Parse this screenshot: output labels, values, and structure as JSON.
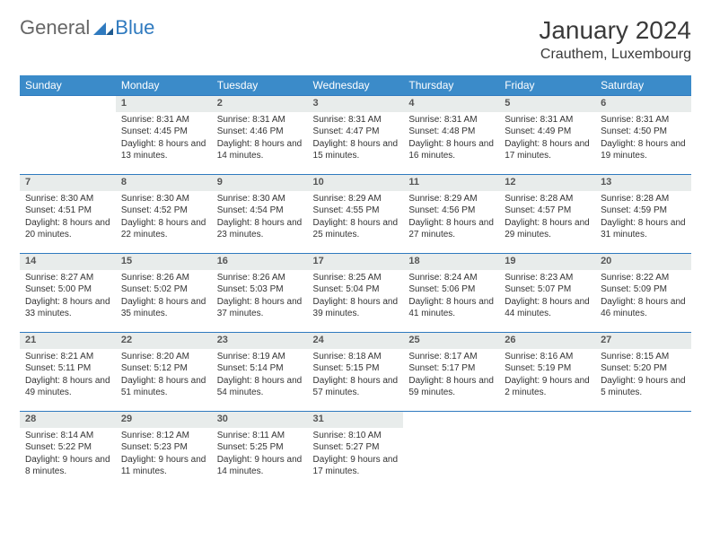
{
  "logo": {
    "general": "General",
    "blue": "Blue"
  },
  "title": "January 2024",
  "location": "Crauthem, Luxembourg",
  "colors": {
    "header_bg": "#3b8bc9",
    "header_text": "#ffffff",
    "daynum_bg": "#e8eceb",
    "border": "#2f7abf",
    "text": "#333333"
  },
  "weekdays": [
    "Sunday",
    "Monday",
    "Tuesday",
    "Wednesday",
    "Thursday",
    "Friday",
    "Saturday"
  ],
  "weeks": [
    [
      null,
      {
        "n": "1",
        "sr": "Sunrise: 8:31 AM",
        "ss": "Sunset: 4:45 PM",
        "dl": "Daylight: 8 hours and 13 minutes."
      },
      {
        "n": "2",
        "sr": "Sunrise: 8:31 AM",
        "ss": "Sunset: 4:46 PM",
        "dl": "Daylight: 8 hours and 14 minutes."
      },
      {
        "n": "3",
        "sr": "Sunrise: 8:31 AM",
        "ss": "Sunset: 4:47 PM",
        "dl": "Daylight: 8 hours and 15 minutes."
      },
      {
        "n": "4",
        "sr": "Sunrise: 8:31 AM",
        "ss": "Sunset: 4:48 PM",
        "dl": "Daylight: 8 hours and 16 minutes."
      },
      {
        "n": "5",
        "sr": "Sunrise: 8:31 AM",
        "ss": "Sunset: 4:49 PM",
        "dl": "Daylight: 8 hours and 17 minutes."
      },
      {
        "n": "6",
        "sr": "Sunrise: 8:31 AM",
        "ss": "Sunset: 4:50 PM",
        "dl": "Daylight: 8 hours and 19 minutes."
      }
    ],
    [
      {
        "n": "7",
        "sr": "Sunrise: 8:30 AM",
        "ss": "Sunset: 4:51 PM",
        "dl": "Daylight: 8 hours and 20 minutes."
      },
      {
        "n": "8",
        "sr": "Sunrise: 8:30 AM",
        "ss": "Sunset: 4:52 PM",
        "dl": "Daylight: 8 hours and 22 minutes."
      },
      {
        "n": "9",
        "sr": "Sunrise: 8:30 AM",
        "ss": "Sunset: 4:54 PM",
        "dl": "Daylight: 8 hours and 23 minutes."
      },
      {
        "n": "10",
        "sr": "Sunrise: 8:29 AM",
        "ss": "Sunset: 4:55 PM",
        "dl": "Daylight: 8 hours and 25 minutes."
      },
      {
        "n": "11",
        "sr": "Sunrise: 8:29 AM",
        "ss": "Sunset: 4:56 PM",
        "dl": "Daylight: 8 hours and 27 minutes."
      },
      {
        "n": "12",
        "sr": "Sunrise: 8:28 AM",
        "ss": "Sunset: 4:57 PM",
        "dl": "Daylight: 8 hours and 29 minutes."
      },
      {
        "n": "13",
        "sr": "Sunrise: 8:28 AM",
        "ss": "Sunset: 4:59 PM",
        "dl": "Daylight: 8 hours and 31 minutes."
      }
    ],
    [
      {
        "n": "14",
        "sr": "Sunrise: 8:27 AM",
        "ss": "Sunset: 5:00 PM",
        "dl": "Daylight: 8 hours and 33 minutes."
      },
      {
        "n": "15",
        "sr": "Sunrise: 8:26 AM",
        "ss": "Sunset: 5:02 PM",
        "dl": "Daylight: 8 hours and 35 minutes."
      },
      {
        "n": "16",
        "sr": "Sunrise: 8:26 AM",
        "ss": "Sunset: 5:03 PM",
        "dl": "Daylight: 8 hours and 37 minutes."
      },
      {
        "n": "17",
        "sr": "Sunrise: 8:25 AM",
        "ss": "Sunset: 5:04 PM",
        "dl": "Daylight: 8 hours and 39 minutes."
      },
      {
        "n": "18",
        "sr": "Sunrise: 8:24 AM",
        "ss": "Sunset: 5:06 PM",
        "dl": "Daylight: 8 hours and 41 minutes."
      },
      {
        "n": "19",
        "sr": "Sunrise: 8:23 AM",
        "ss": "Sunset: 5:07 PM",
        "dl": "Daylight: 8 hours and 44 minutes."
      },
      {
        "n": "20",
        "sr": "Sunrise: 8:22 AM",
        "ss": "Sunset: 5:09 PM",
        "dl": "Daylight: 8 hours and 46 minutes."
      }
    ],
    [
      {
        "n": "21",
        "sr": "Sunrise: 8:21 AM",
        "ss": "Sunset: 5:11 PM",
        "dl": "Daylight: 8 hours and 49 minutes."
      },
      {
        "n": "22",
        "sr": "Sunrise: 8:20 AM",
        "ss": "Sunset: 5:12 PM",
        "dl": "Daylight: 8 hours and 51 minutes."
      },
      {
        "n": "23",
        "sr": "Sunrise: 8:19 AM",
        "ss": "Sunset: 5:14 PM",
        "dl": "Daylight: 8 hours and 54 minutes."
      },
      {
        "n": "24",
        "sr": "Sunrise: 8:18 AM",
        "ss": "Sunset: 5:15 PM",
        "dl": "Daylight: 8 hours and 57 minutes."
      },
      {
        "n": "25",
        "sr": "Sunrise: 8:17 AM",
        "ss": "Sunset: 5:17 PM",
        "dl": "Daylight: 8 hours and 59 minutes."
      },
      {
        "n": "26",
        "sr": "Sunrise: 8:16 AM",
        "ss": "Sunset: 5:19 PM",
        "dl": "Daylight: 9 hours and 2 minutes."
      },
      {
        "n": "27",
        "sr": "Sunrise: 8:15 AM",
        "ss": "Sunset: 5:20 PM",
        "dl": "Daylight: 9 hours and 5 minutes."
      }
    ],
    [
      {
        "n": "28",
        "sr": "Sunrise: 8:14 AM",
        "ss": "Sunset: 5:22 PM",
        "dl": "Daylight: 9 hours and 8 minutes."
      },
      {
        "n": "29",
        "sr": "Sunrise: 8:12 AM",
        "ss": "Sunset: 5:23 PM",
        "dl": "Daylight: 9 hours and 11 minutes."
      },
      {
        "n": "30",
        "sr": "Sunrise: 8:11 AM",
        "ss": "Sunset: 5:25 PM",
        "dl": "Daylight: 9 hours and 14 minutes."
      },
      {
        "n": "31",
        "sr": "Sunrise: 8:10 AM",
        "ss": "Sunset: 5:27 PM",
        "dl": "Daylight: 9 hours and 17 minutes."
      },
      null,
      null,
      null
    ]
  ]
}
